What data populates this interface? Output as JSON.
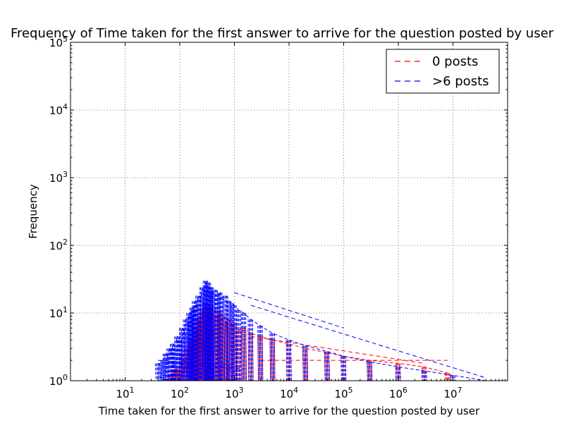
{
  "chart_data": {
    "type": "line",
    "title": "Frequency of Time taken for the first answer to arrive for the question posted by user",
    "xlabel": "Time taken for the first answer to arrive for the question posted by user",
    "ylabel": "Frequency",
    "x_scale": "log",
    "y_scale": "log",
    "xlim": [
      1,
      100000000
    ],
    "ylim": [
      1,
      100000
    ],
    "x_ticks": [
      {
        "value": 10,
        "base": "10",
        "exp": "1"
      },
      {
        "value": 100,
        "base": "10",
        "exp": "2"
      },
      {
        "value": 1000,
        "base": "10",
        "exp": "3"
      },
      {
        "value": 10000,
        "base": "10",
        "exp": "4"
      },
      {
        "value": 100000,
        "base": "10",
        "exp": "5"
      },
      {
        "value": 1000000,
        "base": "10",
        "exp": "6"
      },
      {
        "value": 10000000,
        "base": "10",
        "exp": "7"
      }
    ],
    "y_ticks": [
      {
        "value": 1,
        "base": "10",
        "exp": "0"
      },
      {
        "value": 10,
        "base": "10",
        "exp": "1"
      },
      {
        "value": 100,
        "base": "10",
        "exp": "2"
      },
      {
        "value": 1000,
        "base": "10",
        "exp": "3"
      },
      {
        "value": 10000,
        "base": "10",
        "exp": "4"
      },
      {
        "value": 100000,
        "base": "10",
        "exp": "5"
      }
    ],
    "grid": true,
    "legend_position": "top-right",
    "series": [
      {
        "name": "0 posts",
        "color": "#ff0000",
        "linestyle": "dashed",
        "peak": {
          "x": 300,
          "y": 14
        },
        "points": [
          [
            60,
            1
          ],
          [
            70,
            1.2
          ],
          [
            80,
            1.4
          ],
          [
            90,
            1.5
          ],
          [
            100,
            1.3
          ],
          [
            110,
            2.5
          ],
          [
            120,
            2
          ],
          [
            130,
            1.6
          ],
          [
            140,
            3
          ],
          [
            150,
            2.2
          ],
          [
            160,
            4
          ],
          [
            170,
            3
          ],
          [
            180,
            5
          ],
          [
            190,
            4
          ],
          [
            200,
            6
          ],
          [
            210,
            5
          ],
          [
            220,
            8
          ],
          [
            230,
            6
          ],
          [
            240,
            9
          ],
          [
            250,
            7
          ],
          [
            260,
            11
          ],
          [
            270,
            9
          ],
          [
            280,
            12
          ],
          [
            290,
            10
          ],
          [
            300,
            14
          ],
          [
            320,
            11
          ],
          [
            340,
            13
          ],
          [
            360,
            10
          ],
          [
            380,
            12
          ],
          [
            400,
            9
          ],
          [
            450,
            11
          ],
          [
            500,
            9
          ],
          [
            550,
            10
          ],
          [
            600,
            8
          ],
          [
            650,
            9
          ],
          [
            700,
            7
          ],
          [
            800,
            8
          ],
          [
            900,
            6
          ],
          [
            1000,
            7
          ],
          [
            1200,
            5.5
          ],
          [
            1500,
            6
          ],
          [
            2000,
            5
          ],
          [
            3000,
            4.5
          ],
          [
            5000,
            4
          ],
          [
            10000,
            3.5
          ],
          [
            20000,
            3
          ],
          [
            50000,
            2.6
          ],
          [
            100000,
            2.3
          ],
          [
            300000,
            2
          ],
          [
            1000000,
            1.8
          ],
          [
            3000000,
            1.6
          ],
          [
            8000000,
            1.3
          ]
        ],
        "outliers": [
          [
            [
              3000,
              2
            ],
            [
              8000000,
              2
            ]
          ],
          [
            [
              2000,
              4.5
            ],
            [
              3000000,
              1.8
            ]
          ],
          [
            [
              300,
              1.8
            ],
            [
              1000,
              1.4
            ]
          ]
        ]
      },
      {
        "name": ">6 posts",
        "color": "#0000ff",
        "linestyle": "dashed",
        "peak": {
          "x": 300,
          "y": 30
        },
        "points": [
          [
            40,
            1.8
          ],
          [
            45,
            1.6
          ],
          [
            50,
            2
          ],
          [
            55,
            2.5
          ],
          [
            60,
            2.2
          ],
          [
            65,
            3
          ],
          [
            70,
            2.6
          ],
          [
            75,
            3.5
          ],
          [
            80,
            3
          ],
          [
            90,
            4.5
          ],
          [
            100,
            4
          ],
          [
            110,
            6
          ],
          [
            120,
            5
          ],
          [
            130,
            8
          ],
          [
            140,
            7
          ],
          [
            150,
            10
          ],
          [
            160,
            9
          ],
          [
            170,
            12
          ],
          [
            180,
            11
          ],
          [
            190,
            15
          ],
          [
            200,
            13
          ],
          [
            220,
            18
          ],
          [
            240,
            16
          ],
          [
            260,
            24
          ],
          [
            280,
            20
          ],
          [
            300,
            30
          ],
          [
            320,
            25
          ],
          [
            340,
            28
          ],
          [
            360,
            22
          ],
          [
            380,
            24
          ],
          [
            400,
            20
          ],
          [
            450,
            22
          ],
          [
            500,
            19
          ],
          [
            550,
            20
          ],
          [
            600,
            17
          ],
          [
            700,
            18
          ],
          [
            800,
            15
          ],
          [
            900,
            14
          ],
          [
            1000,
            13
          ],
          [
            1200,
            11
          ],
          [
            1500,
            10
          ],
          [
            2000,
            8
          ],
          [
            3000,
            6.5
          ],
          [
            5000,
            5
          ],
          [
            10000,
            4
          ],
          [
            20000,
            3.3
          ],
          [
            50000,
            2.7
          ],
          [
            100000,
            2.3
          ],
          [
            300000,
            1.9
          ],
          [
            1000000,
            1.6
          ],
          [
            3000000,
            1.4
          ],
          [
            10000000,
            1.2
          ],
          [
            40000000,
            1
          ]
        ],
        "outliers": [
          [
            [
              40,
              2
            ],
            [
              1000,
              1.7
            ]
          ],
          [
            [
              40,
              1.8
            ],
            [
              1500,
              1.5
            ]
          ],
          [
            [
              2000,
              13
            ],
            [
              40000000,
              1.1
            ]
          ],
          [
            [
              1000,
              20
            ],
            [
              100000,
              6
            ]
          ]
        ]
      }
    ]
  }
}
